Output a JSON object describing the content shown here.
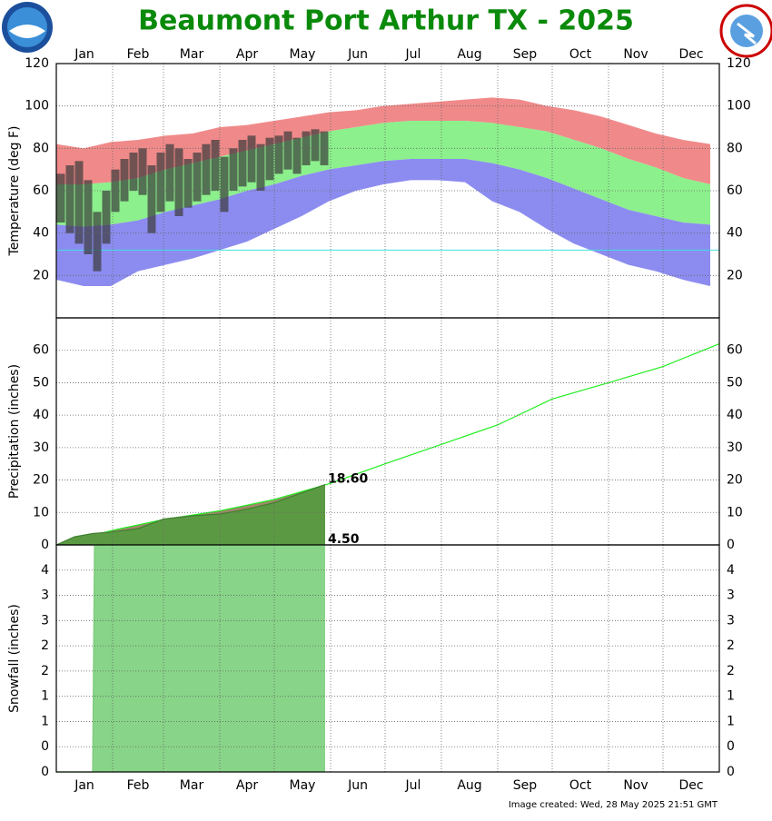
{
  "title": "Beaumont Port Arthur TX - 2025",
  "footer": "Image created: Wed, 28 May 2025 21:51 GMT",
  "chart_data": [
    {
      "type": "range",
      "ylabel": "Temperature (deg F)",
      "categories": [
        "Jan",
        "Feb",
        "Mar",
        "Apr",
        "May",
        "Jun",
        "Jul",
        "Aug",
        "Sep",
        "Oct",
        "Nov",
        "Dec"
      ],
      "xlim": [
        0,
        365
      ],
      "xticks": [
        0,
        31,
        59,
        90,
        120,
        151,
        181,
        212,
        243,
        273,
        304,
        334,
        365
      ],
      "ylim": [
        0,
        120
      ],
      "yticks": [
        20,
        40,
        60,
        80,
        100,
        120
      ],
      "grid": true,
      "x": [
        0,
        15,
        30,
        45,
        60,
        75,
        90,
        105,
        120,
        135,
        150,
        165,
        180,
        195,
        210,
        225,
        240,
        255,
        270,
        285,
        300,
        315,
        330,
        345,
        360
      ],
      "series": [
        {
          "color": "#f08a8a",
          "values": [
            82,
            80,
            83,
            84,
            86,
            87,
            90,
            91,
            93,
            95,
            97,
            98,
            100,
            101,
            102,
            103,
            104,
            103,
            100,
            98,
            95,
            91,
            87,
            84,
            82
          ]
        },
        {
          "color": "#8cf08c",
          "values": [
            63,
            63,
            64,
            66,
            70,
            73,
            76,
            79,
            82,
            85,
            88,
            90,
            92,
            93,
            93,
            93,
            92,
            90,
            88,
            84,
            80,
            75,
            71,
            66,
            63
          ]
        },
        {
          "color": "#8c8cf0",
          "values": [
            44,
            43,
            44,
            46,
            50,
            53,
            56,
            60,
            63,
            67,
            70,
            72,
            74,
            75,
            75,
            75,
            73,
            70,
            66,
            61,
            56,
            51,
            48,
            45,
            44
          ]
        },
        {
          "values": [
            18,
            15,
            15,
            22,
            25,
            28,
            32,
            36,
            42,
            48,
            55,
            60,
            63,
            65,
            65,
            64,
            55,
            50,
            42,
            35,
            30,
            25,
            22,
            18,
            15
          ]
        }
      ],
      "observed": {
        "color": "#3a3a3a",
        "x": [
          0,
          5,
          10,
          15,
          20,
          25,
          30,
          35,
          40,
          45,
          50,
          55,
          60,
          65,
          70,
          75,
          80,
          85,
          90,
          95,
          100,
          105,
          110,
          115,
          120,
          125,
          130,
          135,
          140,
          145
        ],
        "high": [
          68,
          72,
          74,
          65,
          50,
          60,
          70,
          75,
          78,
          80,
          72,
          78,
          82,
          80,
          75,
          78,
          82,
          84,
          76,
          80,
          84,
          86,
          82,
          85,
          86,
          88,
          85,
          88,
          89,
          88
        ],
        "low": [
          45,
          40,
          35,
          30,
          22,
          35,
          50,
          55,
          60,
          58,
          40,
          50,
          55,
          48,
          52,
          55,
          58,
          60,
          50,
          60,
          62,
          64,
          60,
          65,
          68,
          70,
          68,
          72,
          74,
          72
        ]
      },
      "reference_line": {
        "value": 32,
        "color": "#40e0e0"
      }
    },
    {
      "type": "cumulative",
      "ylabel": "Precipitation (inches)",
      "xlim": [
        0,
        365
      ],
      "xticks": [
        0,
        31,
        59,
        90,
        120,
        151,
        181,
        212,
        243,
        273,
        304,
        334,
        365
      ],
      "ylim": [
        0,
        70
      ],
      "yticks": [
        0,
        10,
        20,
        30,
        40,
        50,
        60
      ],
      "grid": true,
      "series": [
        {
          "color": "#22ee22",
          "fill": "#a08868",
          "x": [
            0,
            31,
            59,
            90,
            120,
            151,
            181,
            212,
            243,
            273,
            304,
            334,
            365
          ],
          "values": [
            0,
            4.5,
            7.8,
            10.5,
            14,
            19,
            25,
            31,
            37,
            45,
            50,
            55,
            62
          ]
        },
        {
          "color": "#3f7f2f",
          "fill": "#5b9a42",
          "x": [
            0,
            10,
            20,
            31,
            45,
            59,
            75,
            90,
            105,
            120,
            135,
            148
          ],
          "values": [
            0,
            2.5,
            3.5,
            4,
            5,
            8,
            9,
            9.5,
            11,
            13,
            16,
            18.6
          ],
          "value_labels": [
            null,
            null,
            null,
            null,
            null,
            null,
            null,
            null,
            null,
            null,
            null,
            "18.60"
          ]
        }
      ]
    },
    {
      "type": "cumulative",
      "ylabel": "Snowfall (inches)",
      "categories": [
        "Jan",
        "Feb",
        "Mar",
        "Apr",
        "May",
        "Jun",
        "Jul",
        "Aug",
        "Sep",
        "Oct",
        "Nov",
        "Dec"
      ],
      "xlim": [
        0,
        365
      ],
      "xticks": [
        0,
        31,
        59,
        90,
        120,
        151,
        181,
        212,
        243,
        273,
        304,
        334,
        365
      ],
      "ylim": [
        0,
        4.5
      ],
      "yticks": [
        0,
        {
          "value": 0.5,
          "label": "0"
        },
        1,
        {
          "value": 1.5,
          "label": "1"
        },
        2,
        {
          "value": 2.5,
          "label": "2"
        },
        3,
        {
          "value": 3.5,
          "label": "3"
        },
        4
      ],
      "grid": true,
      "series": [
        {
          "color": "#7ccc7c",
          "fill": "#88d488",
          "x": [
            0,
            20,
            21,
            148
          ],
          "values": [
            0,
            0,
            4.5,
            4.5
          ],
          "value_labels": [
            null,
            null,
            null,
            "4.50"
          ]
        }
      ]
    }
  ]
}
